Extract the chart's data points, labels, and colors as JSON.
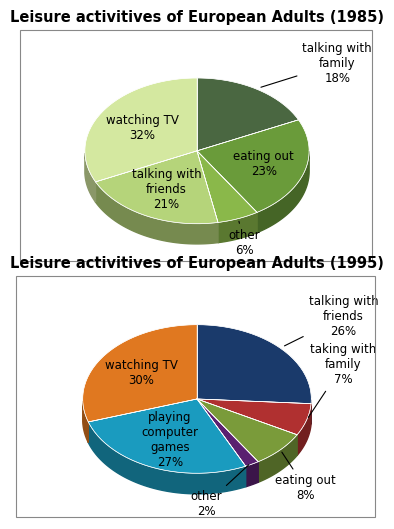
{
  "chart1": {
    "title": "Leisure activitives of European Adults (1985)",
    "labels": [
      "talking with\nfamily",
      "eating out",
      "other",
      "talking with\nfriends",
      "watching TV"
    ],
    "values": [
      18,
      23,
      6,
      21,
      32
    ],
    "colors": [
      "#4a6741",
      "#6a9b3a",
      "#8ab84a",
      "#b5d47a",
      "#d4e8a0"
    ],
    "pct_labels": [
      "18%",
      "23%",
      "6%",
      "21%",
      "32%"
    ]
  },
  "chart2": {
    "title": "Leisure activitives of European Adults (1995)",
    "labels": [
      "talking with\nfriends",
      "taking with\nfamily",
      "eating out",
      "other",
      "playing\ncomputer\ngames",
      "watching TV"
    ],
    "values": [
      26,
      7,
      8,
      2,
      27,
      30
    ],
    "colors": [
      "#1a3a6b",
      "#b03030",
      "#7a9b3a",
      "#5a2070",
      "#1a9bbf",
      "#e07820"
    ],
    "pct_labels": [
      "26%",
      "7%",
      "8%",
      "2%",
      "27%",
      "30%"
    ]
  },
  "background_color": "#ffffff",
  "title_fontsize": 10.5,
  "label_fontsize": 8.5
}
